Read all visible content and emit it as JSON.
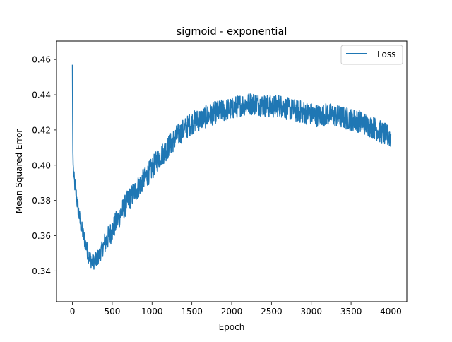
{
  "chart_data": {
    "type": "line",
    "title": "sigmoid - exponential",
    "xlabel": "Epoch",
    "ylabel": "Mean Squared Error",
    "xlim": [
      -200,
      4200
    ],
    "ylim": [
      0.3225,
      0.4705
    ],
    "xticks": [
      0,
      500,
      1000,
      1500,
      2000,
      2500,
      3000,
      3500,
      4000
    ],
    "yticks": [
      0.34,
      0.36,
      0.38,
      0.4,
      0.42,
      0.44,
      0.46
    ],
    "xtick_labels": [
      "0",
      "500",
      "1000",
      "1500",
      "2000",
      "2500",
      "3000",
      "3500",
      "4000"
    ],
    "ytick_labels": [
      "0.34",
      "0.36",
      "0.38",
      "0.40",
      "0.42",
      "0.44",
      "0.46"
    ],
    "legend": {
      "position": "top-right",
      "entries": [
        "Loss"
      ]
    },
    "grid": false,
    "series": [
      {
        "name": "Loss",
        "color": "#1f77b4",
        "x": [
          0,
          5,
          10,
          20,
          40,
          60,
          80,
          100,
          150,
          200,
          250,
          300,
          350,
          400,
          450,
          500,
          600,
          700,
          800,
          900,
          1000,
          1100,
          1200,
          1300,
          1400,
          1500,
          1600,
          1700,
          1800,
          1900,
          2000,
          2100,
          2200,
          2300,
          2400,
          2500,
          2600,
          2700,
          2800,
          2900,
          3000,
          3100,
          3200,
          3300,
          3400,
          3500,
          3600,
          3700,
          3800,
          3900,
          4000
        ],
        "y": [
          0.457,
          0.41,
          0.398,
          0.392,
          0.386,
          0.379,
          0.373,
          0.367,
          0.358,
          0.349,
          0.345,
          0.346,
          0.35,
          0.355,
          0.359,
          0.363,
          0.372,
          0.38,
          0.386,
          0.392,
          0.398,
          0.405,
          0.41,
          0.416,
          0.42,
          0.424,
          0.426,
          0.428,
          0.43,
          0.431,
          0.432,
          0.434,
          0.435,
          0.435,
          0.434,
          0.433,
          0.434,
          0.432,
          0.431,
          0.43,
          0.429,
          0.428,
          0.429,
          0.428,
          0.427,
          0.426,
          0.425,
          0.423,
          0.421,
          0.418,
          0.416
        ],
        "noise_amplitude": 0.0065
      }
    ]
  }
}
